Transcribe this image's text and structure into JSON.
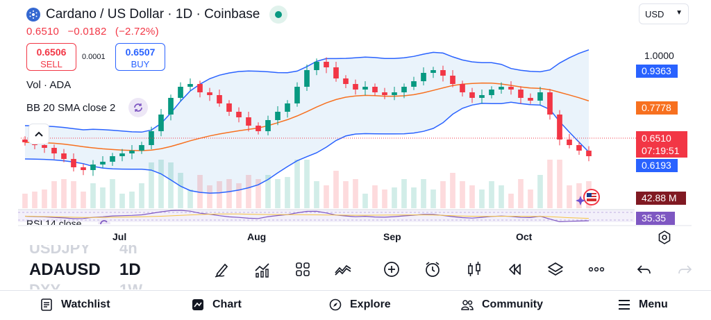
{
  "header": {
    "title": "Cardano / US Dollar · 1D · Coinbase",
    "coin_icon": "ada-coin-icon",
    "live_status_color": "#089981"
  },
  "quote": {
    "last": "0.6510",
    "change": "−0.0182",
    "change_pct": "(−2.72%)",
    "color": "#f23645"
  },
  "trade": {
    "sell_price": "0.6506",
    "sell_label": "SELL",
    "spread": "0.0001",
    "buy_price": "0.6507",
    "buy_label": "BUY"
  },
  "currency_select": {
    "value": "USD"
  },
  "legends": {
    "volume": "Vol · ADA",
    "bollinger": "BB 20 SMA close 2",
    "rsi": "RSI 14 close"
  },
  "price_axis": {
    "top_label": "1.0000",
    "bb_upper": "0.9363",
    "bb_basis": "0.7778",
    "last_price": "0.6510",
    "countdown": "07:19:51",
    "bb_lower": "0.6193",
    "volume": "42.88 M",
    "rsi": "35.35"
  },
  "time_axis": [
    "Jul",
    "Aug",
    "Sep",
    "Oct"
  ],
  "symbols": {
    "previous": {
      "symbol": "USDJPY",
      "interval": "4h"
    },
    "current": {
      "symbol": "ADAUSD",
      "interval": "1D"
    },
    "next": {
      "symbol": "DXY",
      "interval": "1W"
    }
  },
  "toolbar_icons": [
    "draw-icon",
    "indicators-icon",
    "layouts-icon",
    "compare-icon",
    "add-icon",
    "alert-icon",
    "chart-type-icon",
    "replay-icon",
    "layers-icon",
    "more-icon",
    "undo-icon",
    "redo-icon"
  ],
  "nav": {
    "watchlist": "Watchlist",
    "chart": "Chart",
    "explore": "Explore",
    "community": "Community",
    "menu": "Menu"
  },
  "colors": {
    "up": "#089981",
    "down": "#f23645",
    "bb_band": "#2962ff",
    "bb_basis": "#f7701f",
    "bb_fill": "#e3effa",
    "rsi": "#7e57c2"
  },
  "chart_data": {
    "type": "candlestick",
    "title": "Cardano / US Dollar · 1D · Coinbase",
    "x_axis_labels": [
      "Jul",
      "Aug",
      "Sep",
      "Oct"
    ],
    "price_range_visible": [
      0.55,
      1.05
    ],
    "series": [
      {
        "name": "ADA/USD close (approx.)",
        "values": [
          0.7,
          0.69,
          0.68,
          0.66,
          0.64,
          0.61,
          0.6,
          0.62,
          0.63,
          0.65,
          0.66,
          0.67,
          0.69,
          0.74,
          0.8,
          0.86,
          0.9,
          0.91,
          0.88,
          0.87,
          0.84,
          0.81,
          0.79,
          0.76,
          0.74,
          0.78,
          0.81,
          0.84,
          0.9,
          0.96,
          0.99,
          0.97,
          0.93,
          0.91,
          0.89,
          0.9,
          0.88,
          0.87,
          0.88,
          0.9,
          0.92,
          0.95,
          0.96,
          0.94,
          0.91,
          0.88,
          0.86,
          0.87,
          0.89,
          0.9,
          0.89,
          0.86,
          0.85,
          0.88,
          0.8,
          0.71,
          0.69,
          0.67,
          0.65
        ]
      },
      {
        "name": "BB Upper",
        "last": 0.9363
      },
      {
        "name": "BB Basis",
        "last": 0.7778
      },
      {
        "name": "BB Lower",
        "last": 0.6193
      },
      {
        "name": "Volume",
        "last": "42.88 M"
      },
      {
        "name": "RSI 14",
        "last": 35.35
      }
    ]
  }
}
